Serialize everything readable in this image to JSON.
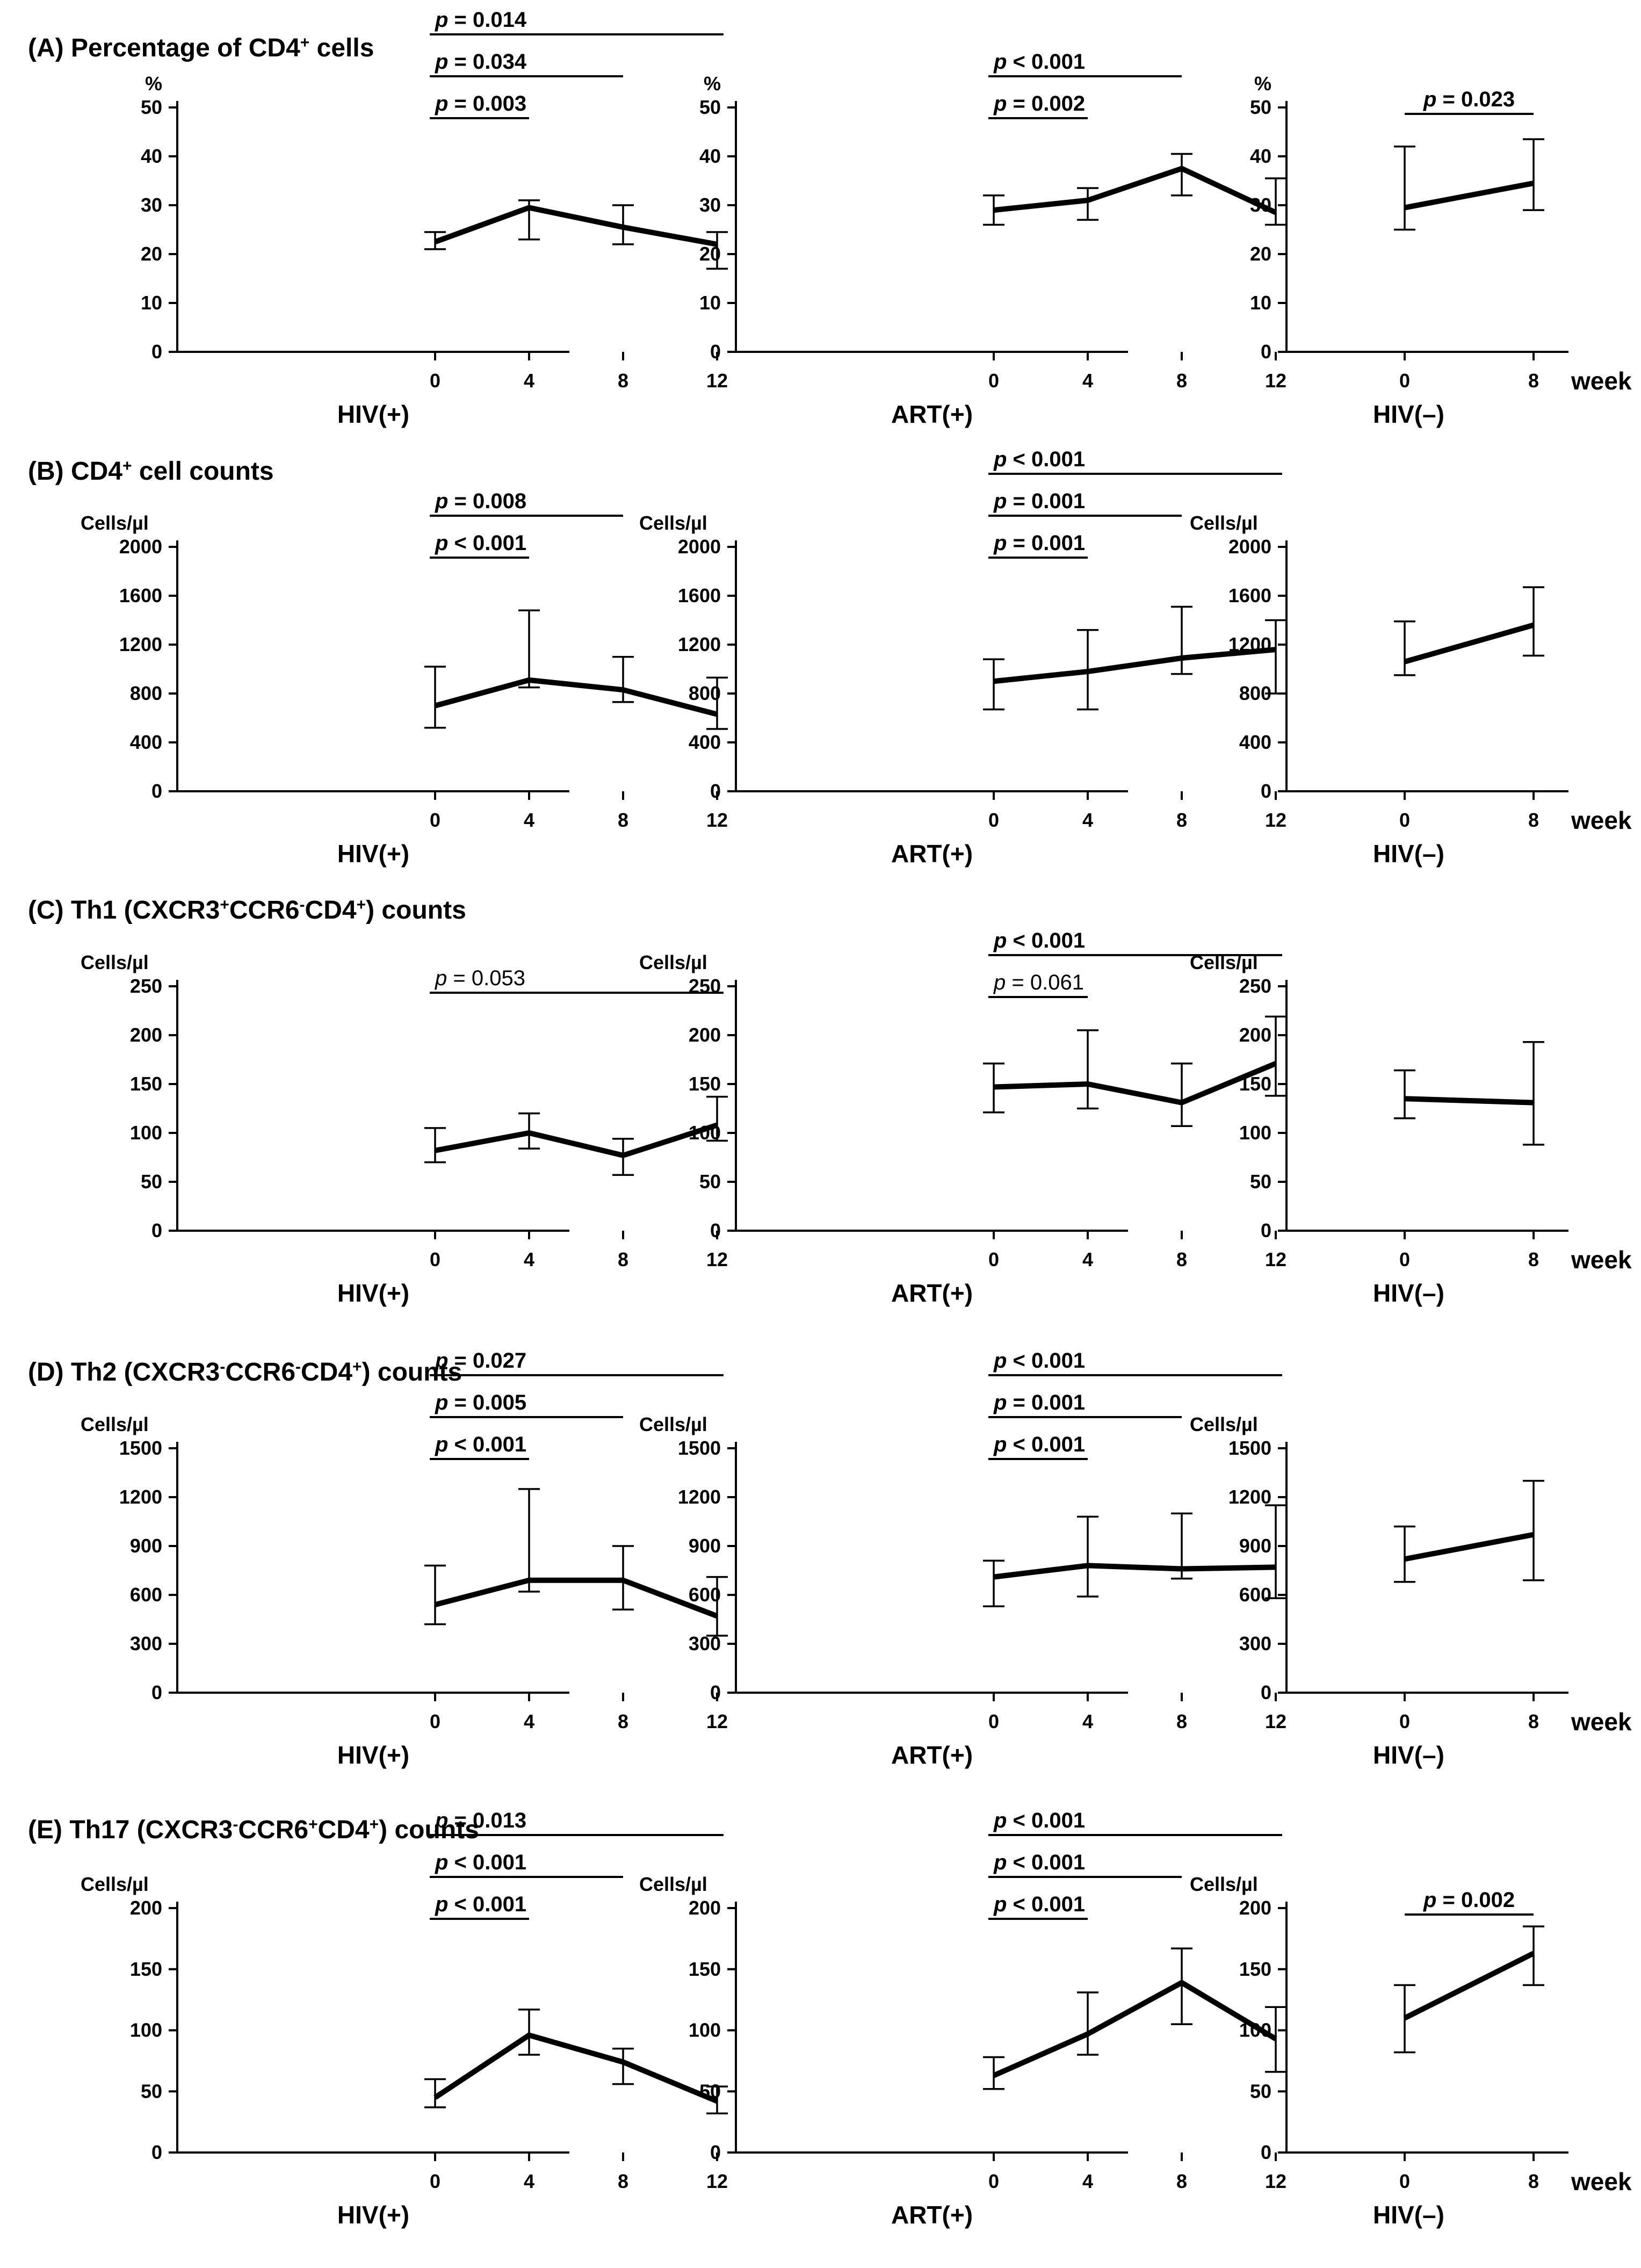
{
  "figure": {
    "x_unit_label": "week",
    "group_labels": [
      "HIV(+)",
      "ART(+)",
      "HIV(–)"
    ],
    "x_ticks": {
      "four": [
        "0",
        "4",
        "8",
        "12"
      ],
      "two": [
        "0",
        "8"
      ]
    }
  },
  "rows": [
    {
      "title_parts": [
        {
          "t": "(A) Percentage of CD4"
        },
        {
          "t": "+",
          "sup": true
        },
        {
          "t": " cells"
        }
      ],
      "y_unit": "%",
      "yticks": [
        0,
        10,
        20,
        30,
        40,
        50
      ],
      "ylim": [
        0,
        50
      ]
    },
    {
      "title_parts": [
        {
          "t": "(B) CD4"
        },
        {
          "t": "+",
          "sup": true
        },
        {
          "t": " cell counts"
        }
      ],
      "y_unit": "Cells/µl",
      "yticks": [
        0,
        400,
        800,
        1200,
        1600,
        2000
      ],
      "ylim": [
        0,
        2000
      ]
    },
    {
      "title_parts": [
        {
          "t": "(C) Th1 (CXCR3"
        },
        {
          "t": "+",
          "sup": true
        },
        {
          "t": "CCR6"
        },
        {
          "t": "-",
          "sup": true
        },
        {
          "t": "CD4"
        },
        {
          "t": "+",
          "sup": true
        },
        {
          "t": ") counts"
        }
      ],
      "y_unit": "Cells/µl",
      "yticks": [
        0,
        50,
        100,
        150,
        200,
        250
      ],
      "ylim": [
        0,
        250
      ]
    },
    {
      "title_parts": [
        {
          "t": "(D) Th2 (CXCR3"
        },
        {
          "t": "-",
          "sup": true
        },
        {
          "t": "CCR6"
        },
        {
          "t": "-",
          "sup": true
        },
        {
          "t": "CD4"
        },
        {
          "t": "+",
          "sup": true
        },
        {
          "t": ") counts"
        }
      ],
      "y_unit": "Cells/µl",
      "yticks": [
        0,
        300,
        600,
        900,
        1200,
        1500
      ],
      "ylim": [
        0,
        1500
      ]
    },
    {
      "title_parts": [
        {
          "t": "(E) Th17 (CXCR3"
        },
        {
          "t": "-",
          "sup": true
        },
        {
          "t": "CCR6"
        },
        {
          "t": "+",
          "sup": true
        },
        {
          "t": "CD4"
        },
        {
          "t": "+",
          "sup": true
        },
        {
          "t": ") counts"
        }
      ],
      "y_unit": "Cells/µl",
      "yticks": [
        0,
        50,
        100,
        150,
        200
      ],
      "ylim": [
        0,
        200
      ]
    }
  ],
  "chart_data": [
    {
      "type": "line",
      "panel": "A-HIV(+)",
      "x": [
        0,
        4,
        8,
        12
      ],
      "y": [
        22.5,
        29.5,
        25.5,
        22
      ],
      "err_low": [
        21,
        23,
        22,
        17
      ],
      "err_high": [
        24.5,
        31,
        30,
        24.5
      ],
      "comparisons": [
        {
          "from": 0,
          "to": 12,
          "label": "p = 0.014",
          "bold": true
        },
        {
          "from": 0,
          "to": 8,
          "label": "p = 0.034",
          "bold": true
        },
        {
          "from": 0,
          "to": 4,
          "label": "p = 0.003",
          "bold": true
        }
      ]
    },
    {
      "type": "line",
      "panel": "A-ART(+)",
      "x": [
        0,
        4,
        8,
        12
      ],
      "y": [
        29,
        31,
        37.5,
        28.5
      ],
      "err_low": [
        26,
        27,
        32,
        26
      ],
      "err_high": [
        32,
        33.5,
        40.5,
        35.5
      ],
      "comparisons": [
        {
          "from": 0,
          "to": 8,
          "label": "p < 0.001",
          "bold": true
        },
        {
          "from": 0,
          "to": 4,
          "label": "p = 0.002",
          "bold": true
        }
      ]
    },
    {
      "type": "line",
      "panel": "A-HIV(–)",
      "x": [
        0,
        8
      ],
      "y": [
        29.5,
        34.5
      ],
      "err_low": [
        25,
        29
      ],
      "err_high": [
        42,
        43.5
      ],
      "comparisons": [
        {
          "from": 0,
          "to": 8,
          "label": "p = 0.023",
          "bold": true
        }
      ]
    },
    {
      "type": "line",
      "panel": "B-HIV(+)",
      "x": [
        0,
        4,
        8,
        12
      ],
      "y": [
        700,
        910,
        830,
        630
      ],
      "err_low": [
        520,
        850,
        730,
        510
      ],
      "err_high": [
        1020,
        1480,
        1100,
        930
      ],
      "comparisons": [
        {
          "from": 0,
          "to": 8,
          "label": "p = 0.008",
          "bold": true
        },
        {
          "from": 0,
          "to": 4,
          "label": "p < 0.001",
          "bold": true
        }
      ]
    },
    {
      "type": "line",
      "panel": "B-ART(+)",
      "x": [
        0,
        4,
        8,
        12
      ],
      "y": [
        900,
        980,
        1090,
        1160
      ],
      "err_low": [
        670,
        670,
        960,
        800
      ],
      "err_high": [
        1080,
        1320,
        1510,
        1400
      ],
      "comparisons": [
        {
          "from": 0,
          "to": 12,
          "label": "p < 0.001",
          "bold": true
        },
        {
          "from": 0,
          "to": 8,
          "label": "p = 0.001",
          "bold": true
        },
        {
          "from": 0,
          "to": 4,
          "label": "p = 0.001",
          "bold": true
        }
      ]
    },
    {
      "type": "line",
      "panel": "B-HIV(–)",
      "x": [
        0,
        8
      ],
      "y": [
        1060,
        1360
      ],
      "err_low": [
        950,
        1110
      ],
      "err_high": [
        1390,
        1670
      ],
      "comparisons": []
    },
    {
      "type": "line",
      "panel": "C-HIV(+)",
      "x": [
        0,
        4,
        8,
        12
      ],
      "y": [
        82,
        100,
        77,
        108
      ],
      "err_low": [
        70,
        84,
        57,
        92
      ],
      "err_high": [
        105,
        120,
        94,
        137
      ],
      "comparisons": [
        {
          "from": 0,
          "to": 12,
          "label": "p = 0.053",
          "bold": false
        }
      ]
    },
    {
      "type": "line",
      "panel": "C-ART(+)",
      "x": [
        0,
        4,
        8,
        12
      ],
      "y": [
        147,
        150,
        131,
        171
      ],
      "err_low": [
        121,
        125,
        107,
        138
      ],
      "err_high": [
        171,
        205,
        171,
        219
      ],
      "comparisons": [
        {
          "from": 0,
          "to": 12,
          "label": "p < 0.001",
          "bold": true
        },
        {
          "from": 0,
          "to": 4,
          "label": "p = 0.061",
          "bold": false
        }
      ]
    },
    {
      "type": "line",
      "panel": "C-HIV(–)",
      "x": [
        0,
        8
      ],
      "y": [
        135,
        131
      ],
      "err_low": [
        115,
        88
      ],
      "err_high": [
        164,
        193
      ],
      "comparisons": []
    },
    {
      "type": "line",
      "panel": "D-HIV(+)",
      "x": [
        0,
        4,
        8,
        12
      ],
      "y": [
        540,
        690,
        690,
        470
      ],
      "err_low": [
        420,
        620,
        510,
        350
      ],
      "err_high": [
        780,
        1250,
        900,
        710
      ],
      "comparisons": [
        {
          "from": 0,
          "to": 12,
          "label": "p = 0.027",
          "bold": true
        },
        {
          "from": 0,
          "to": 8,
          "label": "p = 0.005",
          "bold": true
        },
        {
          "from": 0,
          "to": 4,
          "label": "p < 0.001",
          "bold": true
        }
      ]
    },
    {
      "type": "line",
      "panel": "D-ART(+)",
      "x": [
        0,
        4,
        8,
        12
      ],
      "y": [
        710,
        780,
        760,
        770
      ],
      "err_low": [
        530,
        590,
        700,
        580
      ],
      "err_high": [
        810,
        1080,
        1100,
        1150
      ],
      "comparisons": [
        {
          "from": 0,
          "to": 12,
          "label": "p < 0.001",
          "bold": true
        },
        {
          "from": 0,
          "to": 8,
          "label": "p = 0.001",
          "bold": true
        },
        {
          "from": 0,
          "to": 4,
          "label": "p < 0.001",
          "bold": true
        }
      ]
    },
    {
      "type": "line",
      "panel": "D-HIV(–)",
      "x": [
        0,
        8
      ],
      "y": [
        820,
        970
      ],
      "err_low": [
        680,
        690
      ],
      "err_high": [
        1020,
        1300
      ],
      "comparisons": []
    },
    {
      "type": "line",
      "panel": "E-HIV(+)",
      "x": [
        0,
        4,
        8,
        12
      ],
      "y": [
        45,
        96,
        74,
        42
      ],
      "err_low": [
        37,
        80,
        56,
        32
      ],
      "err_high": [
        60,
        117,
        85,
        54
      ],
      "comparisons": [
        {
          "from": 0,
          "to": 12,
          "label": "p = 0.013",
          "bold": true
        },
        {
          "from": 0,
          "to": 8,
          "label": "p < 0.001",
          "bold": true
        },
        {
          "from": 0,
          "to": 4,
          "label": "p < 0.001",
          "bold": true
        }
      ]
    },
    {
      "type": "line",
      "panel": "E-ART(+)",
      "x": [
        0,
        4,
        8,
        12
      ],
      "y": [
        63,
        97,
        139,
        93
      ],
      "err_low": [
        52,
        80,
        105,
        66
      ],
      "err_high": [
        78,
        131,
        167,
        119
      ],
      "comparisons": [
        {
          "from": 0,
          "to": 12,
          "label": "p < 0.001",
          "bold": true
        },
        {
          "from": 0,
          "to": 8,
          "label": "p < 0.001",
          "bold": true
        },
        {
          "from": 0,
          "to": 4,
          "label": "p < 0.001",
          "bold": true
        }
      ]
    },
    {
      "type": "line",
      "panel": "E-HIV(–)",
      "x": [
        0,
        8
      ],
      "y": [
        110,
        163
      ],
      "err_low": [
        82,
        137
      ],
      "err_high": [
        137,
        185
      ],
      "comparisons": [
        {
          "from": 0,
          "to": 8,
          "label": "p = 0.002",
          "bold": true
        }
      ]
    }
  ]
}
